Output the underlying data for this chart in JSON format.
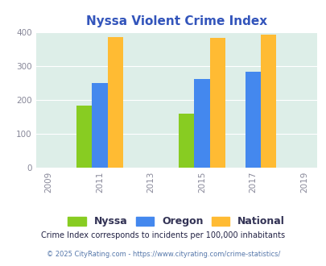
{
  "title": "Nyssa Violent Crime Index",
  "title_color": "#3355bb",
  "years": [
    2009,
    2011,
    2013,
    2015,
    2017,
    2019
  ],
  "bar_years": [
    2011,
    2015,
    2017
  ],
  "nyssa_values": [
    183,
    160,
    0
  ],
  "oregon_values": [
    250,
    262,
    283
  ],
  "national_values": [
    385,
    383,
    393
  ],
  "nyssa_color": "#88cc22",
  "oregon_color": "#4488ee",
  "national_color": "#ffbb33",
  "bg_color": "#ddeee8",
  "ylim": [
    0,
    400
  ],
  "yticks": [
    0,
    100,
    200,
    300,
    400
  ],
  "bar_width": 0.6,
  "legend_labels": [
    "Nyssa",
    "Oregon",
    "National"
  ],
  "footnote1": "Crime Index corresponds to incidents per 100,000 inhabitants",
  "footnote2": "© 2025 CityRating.com - https://www.cityrating.com/crime-statistics/",
  "footnote1_color": "#222244",
  "footnote2_color": "#5577aa"
}
